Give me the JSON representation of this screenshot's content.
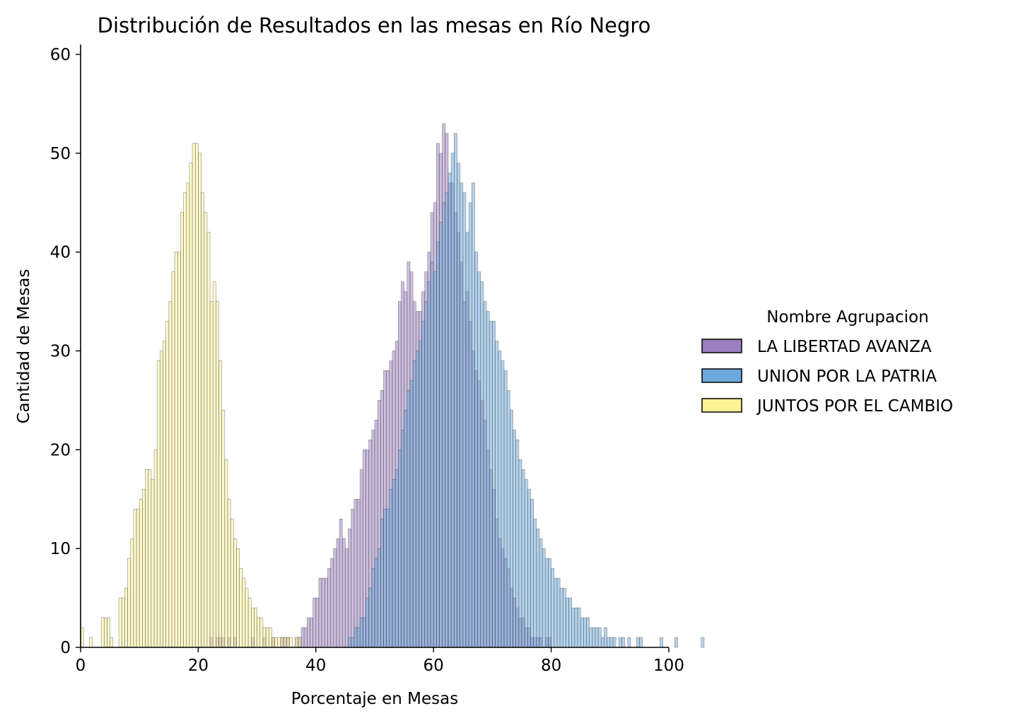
{
  "chart_data": {
    "type": "bar",
    "subtype": "overlapping-histogram",
    "title": "Distribución de Resultados en las mesas en Río Negro",
    "xlabel": "Porcentaje en Mesas",
    "ylabel": "Cantidad de Mesas",
    "xlim": [
      0,
      100
    ],
    "ylim": [
      0,
      61
    ],
    "xticks": [
      0,
      20,
      40,
      60,
      80,
      100
    ],
    "yticks": [
      0,
      10,
      20,
      30,
      40,
      50,
      60
    ],
    "bin_start": 0,
    "bin_width": 0.5,
    "grid": false,
    "legend": {
      "title": "Nombre Agrupacion",
      "placement": "right"
    },
    "series": [
      {
        "name": "LA LIBERTAD AVANZA",
        "color": "#9b7ec0",
        "values": [
          0,
          0,
          0,
          0,
          0,
          0,
          0,
          0,
          0,
          0,
          0,
          0,
          0,
          0,
          0,
          0,
          0,
          0,
          0,
          0,
          0,
          0,
          0,
          0,
          0,
          0,
          0,
          0,
          0,
          0,
          0,
          0,
          0,
          0,
          0,
          0,
          0,
          0,
          0,
          0,
          0,
          0,
          0,
          0,
          1,
          0,
          1,
          1,
          1,
          0,
          1,
          0,
          1,
          0,
          0,
          0,
          0,
          0,
          1,
          0,
          0,
          0,
          1,
          0,
          0,
          1,
          0,
          0,
          1,
          1,
          1,
          0,
          0,
          1,
          1,
          2,
          2,
          3,
          3,
          5,
          5,
          7,
          7,
          7,
          8,
          9,
          10,
          11,
          13,
          11,
          10,
          12,
          14,
          15,
          15,
          18,
          20,
          20,
          21,
          22,
          23,
          25,
          26,
          28,
          28,
          29,
          30,
          31,
          35,
          37,
          36,
          39,
          38,
          35,
          34,
          34,
          36,
          38,
          40,
          44,
          45,
          51,
          50,
          53,
          52,
          47,
          47,
          44,
          42,
          39,
          35,
          36,
          33,
          30,
          28,
          27,
          25,
          23,
          20,
          18,
          16,
          13,
          11,
          10,
          9,
          8,
          6,
          5,
          4,
          3,
          3,
          2,
          2,
          1,
          1,
          1,
          1,
          0,
          1,
          1,
          0,
          0,
          0,
          0,
          0,
          0,
          0,
          0,
          0,
          0,
          0,
          0,
          0,
          0,
          0,
          0,
          0,
          0,
          0,
          0,
          0,
          0,
          0,
          0,
          0,
          0,
          0,
          0,
          0,
          0,
          0,
          0,
          0,
          0,
          0,
          0,
          0,
          0,
          0,
          0,
          0,
          0,
          0,
          0,
          0,
          0,
          0,
          0,
          0,
          0,
          0,
          0,
          0,
          0,
          0,
          0,
          0,
          0,
          0,
          0,
          0,
          0,
          0,
          0,
          0,
          0,
          0,
          0,
          0,
          0,
          0,
          0,
          0,
          0,
          0,
          0,
          0,
          0,
          0,
          0,
          0,
          0,
          0,
          0,
          0,
          0
        ]
      },
      {
        "name": "UNION POR LA PATRIA",
        "color": "#6ca8dc",
        "values": [
          0,
          0,
          0,
          0,
          0,
          0,
          0,
          0,
          0,
          0,
          0,
          0,
          0,
          0,
          0,
          0,
          0,
          0,
          0,
          0,
          0,
          0,
          0,
          0,
          0,
          0,
          0,
          0,
          0,
          0,
          0,
          0,
          0,
          0,
          0,
          0,
          0,
          0,
          0,
          0,
          0,
          0,
          0,
          0,
          0,
          0,
          0,
          0,
          0,
          0,
          0,
          0,
          0,
          0,
          0,
          0,
          0,
          0,
          0,
          0,
          0,
          0,
          0,
          0,
          0,
          0,
          0,
          0,
          0,
          0,
          0,
          0,
          0,
          0,
          0,
          0,
          0,
          0,
          0,
          0,
          0,
          0,
          0,
          0,
          0,
          0,
          0,
          0,
          0,
          0,
          0,
          1,
          1,
          2,
          2,
          3,
          3,
          5,
          6,
          8,
          9,
          10,
          13,
          14,
          14,
          16,
          17,
          18,
          20,
          22,
          24,
          26,
          27,
          29,
          30,
          31,
          33,
          35,
          37,
          39,
          38,
          41,
          43,
          45,
          46,
          48,
          50,
          52,
          49,
          47,
          46,
          42,
          45,
          47,
          40,
          38,
          37,
          35,
          34,
          33,
          33,
          31,
          30,
          29,
          28,
          26,
          24,
          22,
          21,
          19,
          18,
          17,
          16,
          15,
          13,
          12,
          11,
          10,
          9,
          9,
          8,
          7,
          7,
          6,
          6,
          5,
          5,
          4,
          4,
          4,
          3,
          3,
          3,
          2,
          2,
          2,
          2,
          1,
          2,
          1,
          1,
          1,
          0,
          1,
          1,
          0,
          1,
          0,
          0,
          1,
          1,
          0,
          0,
          0,
          0,
          0,
          0,
          1,
          0,
          0,
          0,
          0,
          1,
          0,
          0,
          0,
          0,
          0,
          0,
          0,
          0,
          1,
          0,
          0,
          0,
          0,
          0,
          0,
          0,
          0,
          0,
          0,
          0,
          0,
          0,
          0,
          0,
          0,
          0,
          0,
          0,
          0,
          0,
          0,
          0,
          0,
          0,
          0
        ]
      },
      {
        "name": "JUNTOS POR EL CAMBIO",
        "color": "#fdf195",
        "values": [
          2,
          0,
          0,
          1,
          0,
          0,
          0,
          3,
          3,
          3,
          1,
          0,
          0,
          5,
          5,
          6,
          9,
          11,
          14,
          14,
          15,
          16,
          18,
          18,
          17,
          20,
          29,
          30,
          31,
          33,
          35,
          38,
          40,
          40,
          44,
          46,
          47,
          49,
          51,
          51,
          50,
          46,
          44,
          42,
          35,
          37,
          35,
          29,
          24,
          19,
          15,
          13,
          11,
          10,
          8,
          7,
          6,
          5,
          4,
          4,
          3,
          3,
          2,
          2,
          2,
          1,
          1,
          1,
          1,
          1,
          1,
          1,
          0,
          1,
          1,
          0,
          0,
          0,
          0,
          0,
          0,
          0,
          0,
          0,
          0,
          0,
          0,
          0,
          0,
          0,
          0,
          0,
          0,
          0,
          0,
          0,
          0,
          0,
          0,
          0,
          0,
          0,
          0,
          0,
          0,
          0,
          0,
          0,
          0,
          0,
          0,
          0,
          0,
          0,
          0,
          0,
          0,
          0,
          0,
          0,
          0,
          0,
          0,
          0,
          0,
          0,
          0,
          0,
          0,
          0,
          0,
          0,
          0,
          0,
          0,
          0,
          0,
          0,
          0,
          0,
          0,
          0,
          0,
          0,
          0,
          0,
          0,
          0,
          0,
          0,
          0,
          0,
          0,
          0,
          0,
          0,
          0,
          0,
          0,
          0,
          0,
          0,
          0,
          0,
          0,
          0,
          0,
          0,
          0,
          0,
          0,
          0,
          0,
          0,
          0,
          0,
          0,
          0,
          0,
          0,
          0,
          0,
          0,
          0,
          0,
          0,
          0,
          0,
          0,
          0,
          0,
          0,
          0,
          0,
          0,
          0,
          0,
          0,
          0,
          0,
          0,
          0,
          0,
          0,
          0,
          0,
          0,
          0,
          0,
          0,
          0,
          0,
          0,
          0,
          0,
          0,
          0,
          0,
          0,
          0,
          0,
          0,
          0,
          0,
          0,
          0,
          0,
          0,
          0,
          0,
          0,
          0,
          0,
          0,
          0,
          0,
          0,
          0,
          0,
          0,
          0,
          0
        ]
      }
    ]
  }
}
